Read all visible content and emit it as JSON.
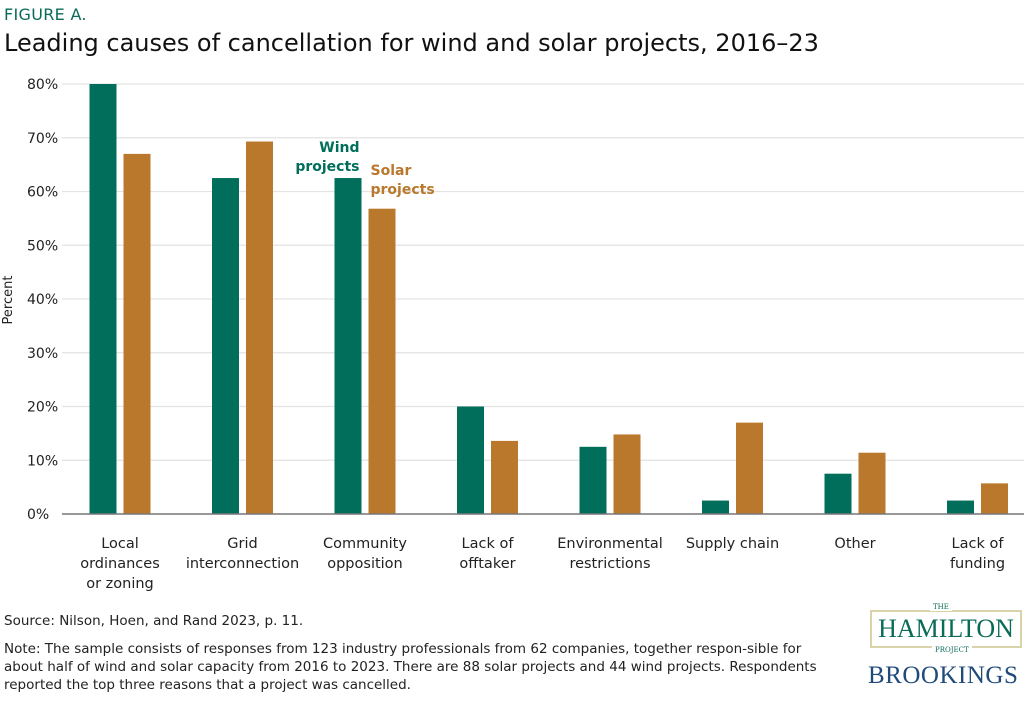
{
  "figure_label": "FIGURE A.",
  "title": "Leading causes of cancellation for wind and solar projects, 2016–23",
  "source": "Source: Nilson, Hoen, and Rand 2023, p. 11.",
  "note": "Note: The sample consists of responses from 123 industry professionals from 62 companies, together respon-sible for about half of wind and solar capacity from 2016 to 2023. There are 88 solar projects and 44 wind projects. Respondents reported the top three reasons that a project was cancelled.",
  "logo": {
    "the": "THE",
    "hamilton": "HAMILTON",
    "project": "PROJECT",
    "brookings": "BROOKINGS"
  },
  "chart_data": {
    "type": "bar",
    "title": "Leading causes of cancellation for wind and solar projects, 2016–23",
    "xlabel": "",
    "ylabel": "Percent",
    "ylim": [
      0,
      80
    ],
    "yticks": [
      "0%",
      "10%",
      "20%",
      "30%",
      "40%",
      "50%",
      "60%",
      "70%",
      "80%"
    ],
    "grid": true,
    "legend": "inline labels above third category",
    "categories": [
      [
        "Local",
        "ordinances",
        "or zoning"
      ],
      [
        "Grid",
        "interconnection"
      ],
      [
        "Community",
        "opposition"
      ],
      [
        "Lack of",
        "offtaker"
      ],
      [
        "Environmental",
        "restrictions"
      ],
      [
        "Supply chain"
      ],
      [
        "Other"
      ],
      [
        "Lack of",
        "funding"
      ]
    ],
    "series": [
      {
        "name": "Wind projects",
        "label_lines": [
          "Wind",
          "projects"
        ],
        "color": "#006e5a",
        "values": [
          80,
          62.5,
          62.5,
          20,
          12.5,
          2.5,
          7.5,
          2.5
        ]
      },
      {
        "name": "Solar projects",
        "label_lines": [
          "Solar",
          "projects"
        ],
        "color": "#ba782c",
        "values": [
          67,
          69.3,
          56.8,
          13.6,
          14.8,
          17,
          11.4,
          5.7
        ]
      }
    ]
  }
}
